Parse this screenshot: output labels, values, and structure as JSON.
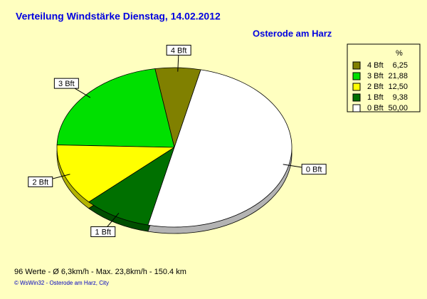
{
  "chart_data": {
    "type": "pie",
    "title": "Verteilung Windstärke  Dienstag, 14.02.2012",
    "subtitle": "Osterode am Harz",
    "legend_title": "%",
    "categories": [
      "4 Bft",
      "3 Bft",
      "2 Bft",
      "1 Bft",
      "0 Bft"
    ],
    "values": [
      6.25,
      21.88,
      12.5,
      9.38,
      50.0
    ],
    "value_labels": [
      "6,25",
      "21,88",
      "12,50",
      "9,38",
      "50,00"
    ],
    "colors": [
      "#808000",
      "#00e000",
      "#ffff00",
      "#007000",
      "#ffffff"
    ],
    "legend_position": "upper right",
    "footer": "96 Werte   -   Ø 6,3km/h  -  Max. 23,8km/h   -   150.4 km",
    "copyright": "© WsWin32  -  Osterode am Harz, City"
  }
}
